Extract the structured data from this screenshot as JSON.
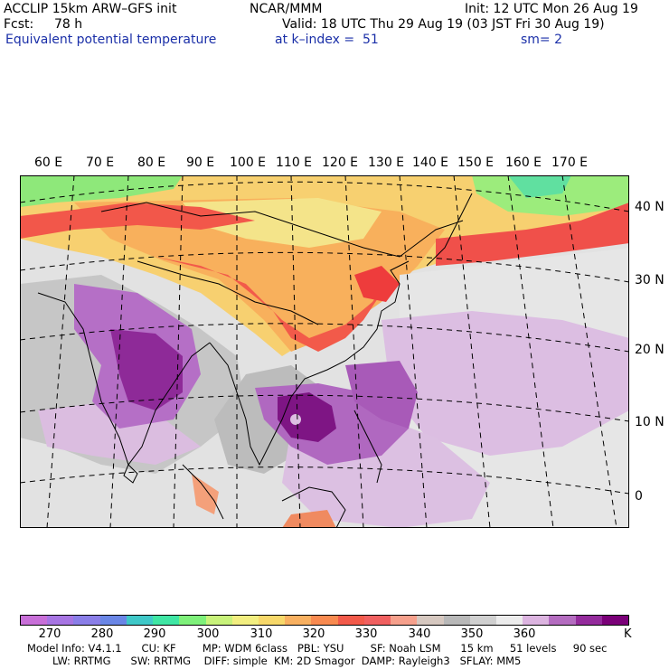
{
  "header": {
    "model": "ACCLIP 15km ARW–GFS init",
    "center": "NCAR/MMM",
    "init": "Init: 12 UTC Mon 26 Aug 19",
    "fcst_label": "Fcst:",
    "fcst_value": "78 h",
    "valid": "Valid: 18 UTC Thu 29 Aug 19 (03 JST Fri 30 Aug 19)",
    "field": "Equivalent potential temperature",
    "level": "at k–index =  51",
    "smoothing": "sm= 2"
  },
  "map": {
    "lon_labels": [
      "60 E",
      "70 E",
      "80 E",
      "90 E",
      "100 E",
      "110 E",
      "120 E",
      "130 E",
      "140 E",
      "150 E",
      "160 E",
      "170 E"
    ],
    "lat_labels": [
      "40 N",
      "30 N",
      "20 N",
      "10 N",
      "0"
    ],
    "features": {
      "typhoon_center_note": "",
      "palette": {
        "land_bg": "#c9c9c9",
        "ocean_bg": "#e8e8e8"
      }
    }
  },
  "colorbar": {
    "unit": "K",
    "tick_labels": [
      "270",
      "280",
      "290",
      "300",
      "310",
      "320",
      "330",
      "340",
      "350",
      "360"
    ],
    "colors": [
      "#c86fd8",
      "#a775e3",
      "#8a7ee8",
      "#6a86e6",
      "#3fc8c8",
      "#3fe6a4",
      "#7ef07a",
      "#c8f27a",
      "#f2ee80",
      "#f7d86a",
      "#f8b060",
      "#f88a50",
      "#f25a4a",
      "#f06060",
      "#f6a08c",
      "#d6c8c0",
      "#b8b8b8",
      "#d0d0d0",
      "#ececec",
      "#dcb4e0",
      "#b46cc0",
      "#942b9c",
      "#7a0078"
    ]
  },
  "footer": {
    "line1": "Model Info: V4.1.1      CU: KF        MP: WDM 6class   PBL: YSU        SF: Noah LSM      15 km     51 levels     90 sec",
    "line2": "LW: RRTMG      SW: RRTMG    DIFF: simple  KM: 2D Smagor  DAMP: Rayleigh3   SFLAY: MM5"
  }
}
